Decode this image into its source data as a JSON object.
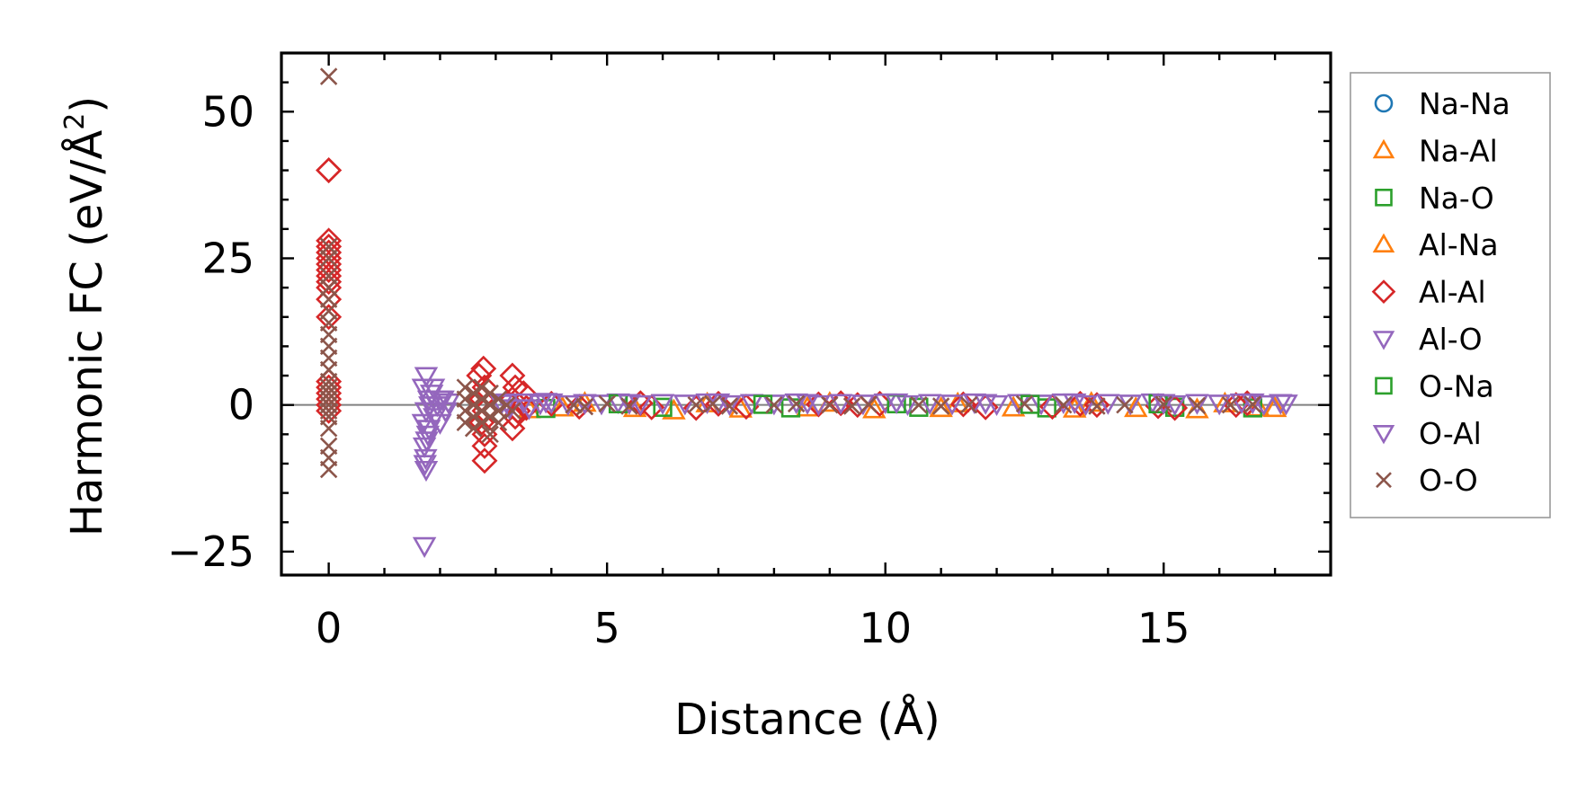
{
  "chart_data": {
    "type": "scatter",
    "title": "",
    "xlabel": "Distance (Å)",
    "ylabel_main": "Harmonic FC (eV/Å",
    "ylabel_sup": "2",
    "ylabel_close": ")",
    "xlim": [
      -0.85,
      18.0
    ],
    "ylim": [
      -29,
      60
    ],
    "xticks": [
      0,
      5,
      10,
      15
    ],
    "xtick_labels": [
      "0",
      "5",
      "10",
      "15"
    ],
    "yticks": [
      -25,
      0,
      25,
      50
    ],
    "ytick_labels": [
      "−25",
      "0",
      "25",
      "50"
    ],
    "zero_line": true,
    "legend_position": "outside-right",
    "series": [
      {
        "name": "Na-Na",
        "marker": "circle",
        "color": "#1f77b4",
        "points": []
      },
      {
        "name": "Na-Al",
        "marker": "triangle-up",
        "color": "#ff7f0e",
        "points": [
          [
            3.6,
            -0.8
          ],
          [
            4.2,
            -0.5
          ],
          [
            5.5,
            -0.6
          ],
          [
            6.2,
            -1.0
          ],
          [
            7.4,
            -0.7
          ],
          [
            8.6,
            -0.5
          ],
          [
            9.8,
            -0.8
          ],
          [
            11.0,
            -0.6
          ],
          [
            12.3,
            -0.5
          ],
          [
            13.4,
            -0.7
          ],
          [
            14.5,
            -0.6
          ],
          [
            15.6,
            -0.8
          ],
          [
            16.7,
            -0.5
          ],
          [
            17.0,
            -0.6
          ]
        ]
      },
      {
        "name": "Na-O",
        "marker": "square",
        "color": "#2ca02c",
        "points": [
          [
            3.9,
            -0.6
          ],
          [
            6.0,
            -0.4
          ],
          [
            8.3,
            -0.5
          ],
          [
            10.6,
            -0.4
          ],
          [
            12.9,
            -0.5
          ],
          [
            15.2,
            -0.4
          ],
          [
            16.6,
            -0.5
          ]
        ]
      },
      {
        "name": "Al-Na",
        "marker": "triangle-up",
        "color": "#ff7f0e",
        "points": [
          [
            4.6,
            0.3
          ],
          [
            6.8,
            0.2
          ],
          [
            9.0,
            0.3
          ],
          [
            11.3,
            0.2
          ],
          [
            13.7,
            0.3
          ],
          [
            16.1,
            0.2
          ]
        ]
      },
      {
        "name": "Al-Al",
        "marker": "diamond",
        "color": "#d62728",
        "points": [
          [
            0,
            40
          ],
          [
            0,
            40
          ],
          [
            0,
            28
          ],
          [
            0,
            27
          ],
          [
            0,
            26
          ],
          [
            0,
            25
          ],
          [
            0,
            24
          ],
          [
            0,
            23
          ],
          [
            0,
            22
          ],
          [
            0,
            21
          ],
          [
            0,
            20
          ],
          [
            0,
            18
          ],
          [
            0,
            15
          ],
          [
            0,
            4
          ],
          [
            0,
            3
          ],
          [
            0,
            2
          ],
          [
            0,
            1
          ],
          [
            0,
            0
          ],
          [
            0,
            -1
          ],
          [
            2.78,
            6.2
          ],
          [
            2.7,
            5
          ],
          [
            2.8,
            3
          ],
          [
            2.75,
            1
          ],
          [
            2.8,
            -1
          ],
          [
            2.75,
            -3
          ],
          [
            2.8,
            -5
          ],
          [
            2.8,
            -7
          ],
          [
            2.8,
            -9.5
          ],
          [
            3.3,
            5
          ],
          [
            3.35,
            3
          ],
          [
            3.3,
            1
          ],
          [
            3.4,
            -1
          ],
          [
            3.35,
            -2
          ],
          [
            3.3,
            -4
          ],
          [
            3.5,
            2
          ],
          [
            3.55,
            -0.5
          ],
          [
            4.0,
            0.2
          ],
          [
            4.5,
            -0.3
          ],
          [
            5.6,
            0.3
          ],
          [
            5.8,
            -0.4
          ],
          [
            6.6,
            -0.5
          ],
          [
            7.0,
            0.2
          ],
          [
            7.5,
            -0.3
          ],
          [
            8.8,
            0.1
          ],
          [
            9.2,
            0.3
          ],
          [
            9.5,
            0.0
          ],
          [
            9.9,
            0.2
          ],
          [
            11.4,
            0.1
          ],
          [
            11.8,
            -0.4
          ],
          [
            13.0,
            -0.3
          ],
          [
            13.5,
            0.2
          ],
          [
            13.8,
            0.0
          ],
          [
            14.9,
            -0.2
          ],
          [
            15.2,
            -0.5
          ],
          [
            16.3,
            0.0
          ],
          [
            16.5,
            0.3
          ]
        ]
      },
      {
        "name": "Al-O",
        "marker": "triangle-down",
        "color": "#9467bd",
        "points": [
          [
            1.72,
            -24
          ],
          [
            1.75,
            -11
          ],
          [
            1.74,
            -9
          ],
          [
            1.72,
            -7
          ],
          [
            1.78,
            -5
          ],
          [
            1.7,
            -3
          ],
          [
            1.75,
            -1
          ],
          [
            1.8,
            1
          ],
          [
            1.7,
            3
          ],
          [
            1.75,
            5
          ],
          [
            1.85,
            2
          ],
          [
            1.9,
            -2
          ],
          [
            1.95,
            0
          ],
          [
            2.0,
            -3
          ],
          [
            2.05,
            1
          ],
          [
            2.1,
            -1
          ],
          [
            2.15,
            0.5
          ],
          [
            3.2,
            0.5
          ],
          [
            3.25,
            -0.5
          ],
          [
            3.5,
            0.5
          ],
          [
            3.6,
            -0.5
          ],
          [
            3.8,
            0.3
          ],
          [
            4.0,
            0.5
          ],
          [
            4.3,
            0.2
          ],
          [
            4.6,
            0.4
          ],
          [
            4.9,
            0.3
          ],
          [
            5.2,
            0.5
          ],
          [
            5.6,
            0.2
          ],
          [
            6.0,
            0.4
          ],
          [
            6.4,
            0.3
          ],
          [
            6.8,
            0.5
          ],
          [
            7.2,
            0.2
          ],
          [
            7.6,
            0.4
          ],
          [
            8.0,
            0.3
          ],
          [
            8.4,
            0.5
          ],
          [
            8.8,
            0.2
          ],
          [
            9.2,
            0.4
          ],
          [
            9.6,
            0.3
          ],
          [
            10.0,
            0.5
          ],
          [
            10.4,
            0.2
          ],
          [
            10.8,
            0.4
          ],
          [
            11.2,
            0.3
          ],
          [
            11.6,
            0.5
          ],
          [
            12.0,
            0.2
          ],
          [
            12.4,
            0.4
          ],
          [
            12.8,
            0.3
          ],
          [
            13.2,
            0.5
          ],
          [
            13.6,
            0.2
          ],
          [
            14.0,
            0.4
          ],
          [
            14.4,
            0.3
          ],
          [
            14.8,
            0.5
          ],
          [
            15.2,
            0.2
          ],
          [
            15.6,
            0.4
          ],
          [
            16.0,
            0.3
          ],
          [
            16.4,
            0.5
          ],
          [
            16.8,
            0.2
          ],
          [
            17.2,
            0.3
          ]
        ]
      },
      {
        "name": "O-Na",
        "marker": "square",
        "color": "#2ca02c",
        "points": [
          [
            5.2,
            0.2
          ],
          [
            7.8,
            0.1
          ],
          [
            10.2,
            0.2
          ],
          [
            12.6,
            0.1
          ],
          [
            14.9,
            0.2
          ]
        ]
      },
      {
        "name": "O-Al",
        "marker": "triangle-down",
        "color": "#9467bd",
        "points": [
          [
            1.73,
            -10
          ],
          [
            1.76,
            -6
          ],
          [
            1.8,
            -4
          ],
          [
            1.82,
            0
          ],
          [
            1.88,
            3
          ],
          [
            2.0,
            1
          ],
          [
            3.1,
            0.3
          ],
          [
            3.9,
            0.6
          ],
          [
            5.4,
            0.4
          ],
          [
            7.0,
            0.5
          ],
          [
            8.6,
            0.4
          ],
          [
            10.2,
            0.5
          ],
          [
            11.8,
            0.4
          ],
          [
            13.4,
            0.5
          ],
          [
            15.0,
            0.4
          ],
          [
            16.6,
            0.5
          ],
          [
            17.1,
            0.4
          ]
        ]
      },
      {
        "name": "O-O",
        "marker": "x",
        "color": "#8c564b",
        "points": [
          [
            0,
            56
          ],
          [
            0,
            27
          ],
          [
            0,
            25
          ],
          [
            0,
            22
          ],
          [
            0,
            20
          ],
          [
            0,
            18
          ],
          [
            0,
            16
          ],
          [
            0,
            14
          ],
          [
            0,
            12
          ],
          [
            0,
            10
          ],
          [
            0,
            8
          ],
          [
            0,
            6
          ],
          [
            0,
            4
          ],
          [
            0,
            3
          ],
          [
            0,
            2
          ],
          [
            0,
            1
          ],
          [
            0,
            0
          ],
          [
            0,
            -1
          ],
          [
            0,
            -2
          ],
          [
            0,
            -4
          ],
          [
            0,
            -7
          ],
          [
            0,
            -9
          ],
          [
            0,
            -11
          ],
          [
            2.45,
            3
          ],
          [
            2.45,
            1
          ],
          [
            2.45,
            -1
          ],
          [
            2.45,
            -3
          ],
          [
            2.6,
            2
          ],
          [
            2.6,
            0
          ],
          [
            2.6,
            -2
          ],
          [
            2.6,
            -4
          ],
          [
            2.75,
            3
          ],
          [
            2.75,
            1
          ],
          [
            2.75,
            -1
          ],
          [
            2.75,
            -3
          ],
          [
            2.9,
            2
          ],
          [
            2.9,
            0
          ],
          [
            2.9,
            -2
          ],
          [
            2.9,
            -5
          ],
          [
            3.05,
            1
          ],
          [
            3.05,
            -1
          ],
          [
            3.05,
            -3
          ],
          [
            3.2,
            0
          ],
          [
            3.3,
            -1
          ],
          [
            4.4,
            0
          ],
          [
            4.6,
            -0.3
          ],
          [
            5.0,
            0.2
          ],
          [
            5.4,
            -0.2
          ],
          [
            6.6,
            0
          ],
          [
            6.9,
            0.2
          ],
          [
            7.2,
            -0.2
          ],
          [
            8.0,
            0
          ],
          [
            8.4,
            0.2
          ],
          [
            9.0,
            0
          ],
          [
            9.4,
            -0.2
          ],
          [
            9.7,
            0.1
          ],
          [
            10.6,
            0
          ],
          [
            11.0,
            -0.2
          ],
          [
            11.5,
            0
          ],
          [
            12.5,
            0.2
          ],
          [
            13.2,
            0
          ],
          [
            13.8,
            -0.2
          ],
          [
            14.3,
            0
          ],
          [
            15.0,
            0.1
          ],
          [
            15.6,
            -0.1
          ],
          [
            16.2,
            0
          ],
          [
            16.6,
            0.1
          ]
        ]
      }
    ]
  }
}
